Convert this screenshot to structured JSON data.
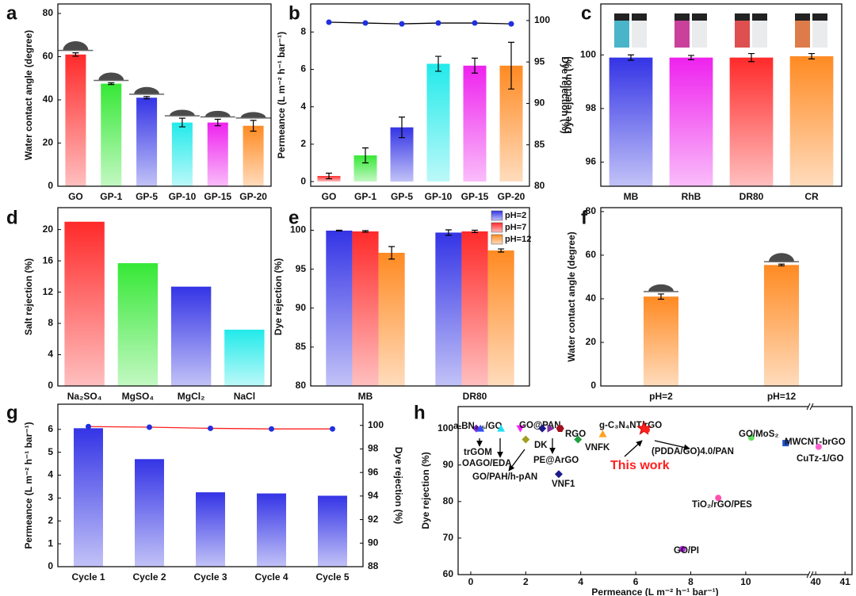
{
  "chart_data": [
    {
      "type": "bar",
      "panel": "a",
      "categories": [
        "GO",
        "GP-1",
        "GP-5",
        "GP-10",
        "GP-15",
        "GP-20"
      ],
      "values": [
        61,
        47.5,
        41,
        29.5,
        29.5,
        28
      ],
      "errors": [
        0.8,
        0.4,
        0.5,
        2,
        1.5,
        2.5
      ],
      "colors": [
        "#ff2a2a",
        "#36e836",
        "#3434e6",
        "#22eaea",
        "#ee22ee",
        "#ff8a22"
      ],
      "ylabel": "Water contact angle (degree)",
      "ylim": [
        0,
        84.4
      ],
      "yticks": [
        0,
        20,
        40,
        60,
        80
      ]
    },
    {
      "type": "bar",
      "panel": "b",
      "categories": [
        "GO",
        "GP-1",
        "GP-5",
        "GP-10",
        "GP-15",
        "GP-20"
      ],
      "values": [
        0.3,
        1.4,
        2.9,
        6.3,
        6.2,
        6.2
      ],
      "errors": [
        0.15,
        0.4,
        0.55,
        0.4,
        0.4,
        1.25
      ],
      "colors": [
        "#ff2a2a",
        "#36e836",
        "#3434e6",
        "#22eaea",
        "#ee22ee",
        "#ff8a22"
      ],
      "ylabel": "Permeance (L m⁻² h⁻¹ bar⁻¹)",
      "ylim": [
        -0.25,
        9.5
      ],
      "yticks": [
        0,
        2,
        4,
        6,
        8
      ],
      "y2label": "Dye rejection (%)",
      "y2lim": [
        80,
        102
      ],
      "y2ticks": [
        80,
        85,
        90,
        95,
        100
      ],
      "line": {
        "values": [
          99.8,
          99.7,
          99.6,
          99.7,
          99.7,
          99.6
        ],
        "color": "#000000",
        "marker_color": "#2030e0",
        "axis": "y2"
      }
    },
    {
      "type": "bar",
      "panel": "c",
      "categories": [
        "MB",
        "RhB",
        "DR80",
        "CR"
      ],
      "values": [
        99.9,
        99.9,
        99.9,
        99.95
      ],
      "errors": [
        0.1,
        0.08,
        0.15,
        0.1
      ],
      "colors": [
        "#3434e6",
        "#ee22ee",
        "#ff2a2a",
        "#ff8a22"
      ],
      "ylabel": "Dye rejection (%)",
      "ylim": [
        95.1,
        101.9
      ],
      "yticks": [
        96,
        98,
        100
      ]
    },
    {
      "type": "bar",
      "panel": "d",
      "categories": [
        "Na₂SO₄",
        "MgSO₄",
        "MgCl₂",
        "NaCl"
      ],
      "values": [
        21,
        15.7,
        12.7,
        7.2
      ],
      "colors": [
        "#ff2a2a",
        "#36e836",
        "#3434e6",
        "#22eaea"
      ],
      "ylabel": "Salt rejection (%)",
      "ylim": [
        0,
        22.8
      ],
      "yticks": [
        0,
        4,
        8,
        12,
        16,
        20
      ]
    },
    {
      "type": "bar",
      "panel": "e",
      "categories": [
        "MB",
        "DR80"
      ],
      "series": [
        {
          "name": "pH=2",
          "color": "#3434e6",
          "values": [
            99.95,
            99.7
          ],
          "errors": [
            0.05,
            0.35
          ]
        },
        {
          "name": "pH=7",
          "color": "#ff2a2a",
          "values": [
            99.85,
            99.85
          ],
          "errors": [
            0.1,
            0.15
          ]
        },
        {
          "name": "pH=12",
          "color": "#ff8a22",
          "values": [
            97.1,
            97.4
          ],
          "errors": [
            0.8,
            0.2
          ]
        }
      ],
      "legend": "upper right",
      "ylabel": "Dye rejection (%)",
      "ylim": [
        80,
        102.9
      ],
      "yticks": [
        80,
        85,
        90,
        95,
        100
      ]
    },
    {
      "type": "bar",
      "panel": "f",
      "categories": [
        "pH=2",
        "pH=12"
      ],
      "values": [
        41,
        55.5
      ],
      "errors": [
        1.2,
        0.4
      ],
      "colors": [
        "#ff8a22",
        "#ff8a22"
      ],
      "ylabel": "Water contact angle (degree)",
      "ylim": [
        0,
        81.8
      ],
      "yticks": [
        0,
        20,
        40,
        60,
        80
      ]
    },
    {
      "type": "bar",
      "panel": "g",
      "categories": [
        "Cycle 1",
        "Cycle 2",
        "Cycle 3",
        "Cycle 4",
        "Cycle 5"
      ],
      "values": [
        6.05,
        4.7,
        3.25,
        3.2,
        3.1
      ],
      "colors": [
        "#3434e6",
        "#3434e6",
        "#3434e6",
        "#3434e6",
        "#3434e6"
      ],
      "ylabel": "Permeance (L m⁻² h⁻¹ bar⁻¹)",
      "ylim": [
        0,
        7.1
      ],
      "yticks": [
        0,
        1,
        2,
        3,
        4,
        5,
        6
      ],
      "y2label": "Dye rejection (%)",
      "y2lim": [
        88,
        101.8
      ],
      "y2ticks": [
        88,
        90,
        92,
        94,
        96,
        98,
        100
      ],
      "line": {
        "values": [
          99.9,
          99.85,
          99.75,
          99.7,
          99.7
        ],
        "color": "#ff2020",
        "marker_color": "#2030e0",
        "axis": "y2"
      }
    },
    {
      "type": "scatter",
      "panel": "h",
      "xlabel": "Permeance (L m⁻² h⁻¹ bar⁻¹)",
      "ylabel": "Dye rejection (%)",
      "xlim": [
        -0.46,
        41.24
      ],
      "xbreak": [
        12.28,
        39.86
      ],
      "xticks": [
        0,
        2,
        4,
        6,
        8,
        10,
        40,
        41
      ],
      "ylim": [
        60,
        106
      ],
      "yticks": [
        60,
        70,
        80,
        90,
        100
      ],
      "points": [
        {
          "label": "a-BN₂.₅/GO",
          "x": 0.2,
          "y": 100,
          "color": "#8a2be2",
          "marker": "diamond"
        },
        {
          "label": "trGOM",
          "x": 0.35,
          "y": 100,
          "color": "#3050ff",
          "marker": "triangle-up"
        },
        {
          "label": "OAGO/EDA",
          "x": 1.1,
          "y": 100,
          "color": "#20e0f0",
          "marker": "triangle-up"
        },
        {
          "label": "GO@PAN",
          "x": 1.8,
          "y": 100,
          "color": "#ff20ff",
          "marker": "triangle-down"
        },
        {
          "label": "GO/PAH/h-pAN",
          "x": 2.0,
          "y": 97,
          "color": "#a0a020",
          "marker": "diamond"
        },
        {
          "label": "DK",
          "x": 2.6,
          "y": 100,
          "color": "#1a1a8a",
          "marker": "diamond"
        },
        {
          "label": "PE@ArGO",
          "x": 2.9,
          "y": 100,
          "color": "#8030a0",
          "marker": "triangle-right"
        },
        {
          "label": "RGO",
          "x": 3.25,
          "y": 100,
          "color": "#a01020",
          "marker": "hexagon"
        },
        {
          "label": "VNFK",
          "x": 3.9,
          "y": 97,
          "color": "#20a040",
          "marker": "diamond"
        },
        {
          "label": "VNF1",
          "x": 3.2,
          "y": 87.5,
          "color": "#1a1a8a",
          "marker": "diamond"
        },
        {
          "label": "g-C₃N₄NT/rGO",
          "x": 4.8,
          "y": 98.5,
          "color": "#ffa020",
          "marker": "triangle-up"
        },
        {
          "label": "This work",
          "x": 6.3,
          "y": 100,
          "color": "#ff2020",
          "marker": "star"
        },
        {
          "label": "(PDDA/GO)4.0/PAN",
          "x": 6.4,
          "y": 99.6,
          "color": "#ff2020",
          "marker": "circle"
        },
        {
          "label": "TiO₂/rGO/PES",
          "x": 9.0,
          "y": 81,
          "color": "#ff50b0",
          "marker": "circle"
        },
        {
          "label": "GO/PI",
          "x": 7.7,
          "y": 67,
          "color": "#b020e0",
          "marker": "circle"
        },
        {
          "label": "GO/MoS₂",
          "x": 10.2,
          "y": 97.5,
          "color": "#60e060",
          "marker": "circle"
        },
        {
          "label": "MWCNT-brGO",
          "x": 11.45,
          "y": 96,
          "color": "#2050d0",
          "marker": "square"
        },
        {
          "label": "CuTz-1/GO",
          "x": 40.1,
          "y": 95,
          "color": "#ff60d0",
          "marker": "circle"
        }
      ]
    }
  ]
}
